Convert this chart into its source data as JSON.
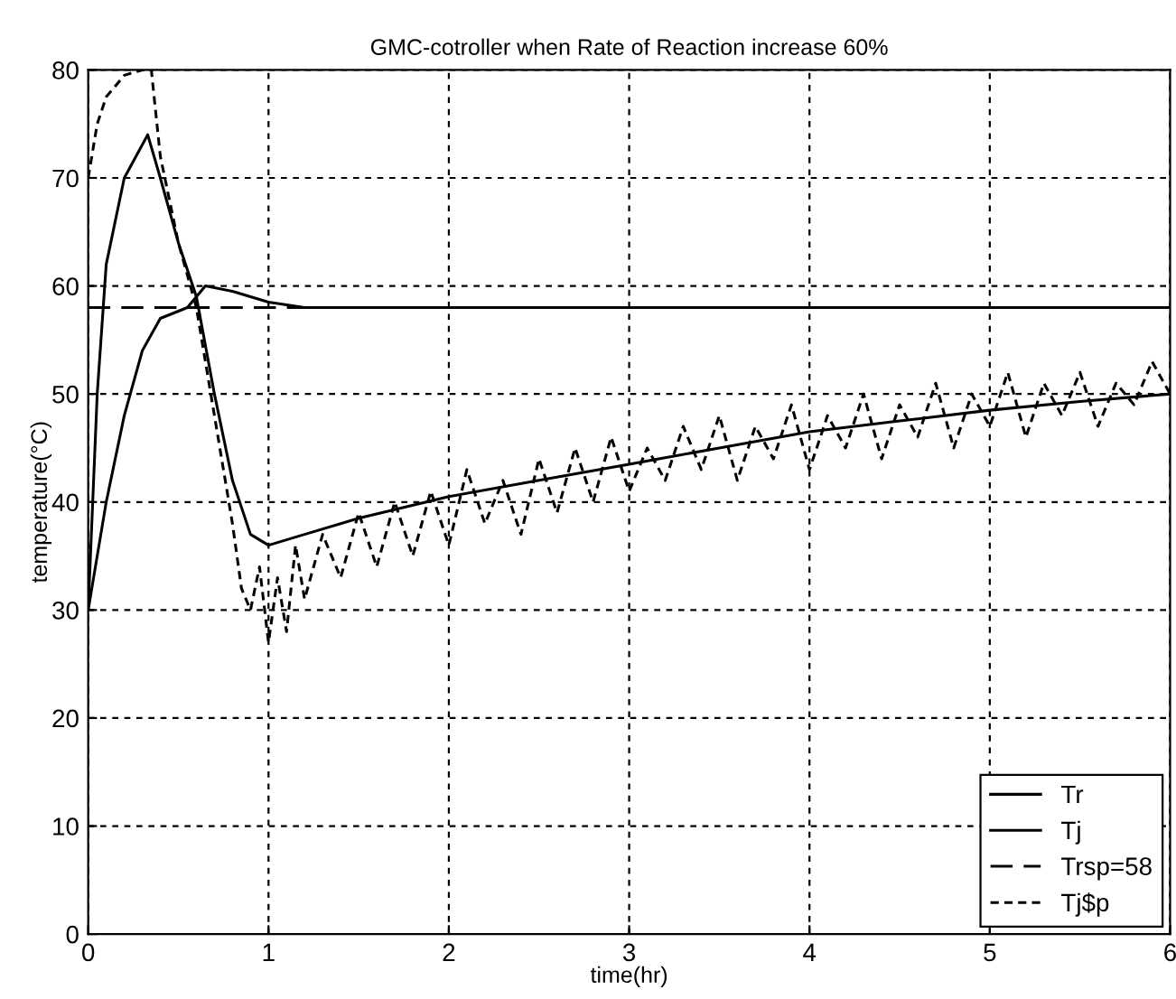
{
  "chart_data": {
    "type": "line",
    "title": "GMC-cotroller when Rate of Reaction increase 60%",
    "xlabel": "time(hr)",
    "ylabel": "temperature(°C)",
    "xlim": [
      0,
      6
    ],
    "ylim": [
      0,
      80
    ],
    "xticks": [
      0,
      1,
      2,
      3,
      4,
      5,
      6
    ],
    "yticks": [
      0,
      10,
      20,
      30,
      40,
      50,
      60,
      70,
      80
    ],
    "grid": true,
    "legend": "bottom right",
    "series": [
      {
        "name": "Tr",
        "color": "#000000",
        "line_style": "solid",
        "x": [
          0,
          0.1,
          0.2,
          0.3,
          0.4,
          0.55,
          0.65,
          0.8,
          1.0,
          1.2,
          6
        ],
        "values": [
          30,
          40,
          48,
          54,
          57,
          58,
          60,
          59.5,
          58.5,
          58,
          58
        ]
      },
      {
        "name": "Tj",
        "color": "#000000",
        "line_style": "solid",
        "x": [
          0,
          0.05,
          0.1,
          0.2,
          0.33,
          0.4,
          0.5,
          0.6,
          0.7,
          0.8,
          0.9,
          1.0,
          1.2,
          1.5,
          2,
          2.5,
          3,
          3.5,
          4,
          4.5,
          5,
          5.5,
          6
        ],
        "values": [
          30,
          50,
          62,
          70,
          74,
          70,
          64,
          59,
          50,
          42,
          37,
          36,
          37,
          38.5,
          40.5,
          42,
          43.5,
          45,
          46.5,
          47.5,
          48.5,
          49.3,
          50
        ]
      },
      {
        "name": "Trsp=58",
        "color": "#000000",
        "line_style": "dashed",
        "x": [
          0,
          6
        ],
        "values": [
          58,
          58
        ]
      },
      {
        "name": "Tj$p",
        "color": "#000000",
        "line_style": "dotted",
        "x": [
          0,
          0.05,
          0.1,
          0.2,
          0.3,
          0.35,
          0.4,
          0.5,
          0.6,
          0.7,
          0.8,
          0.85,
          0.9,
          0.95,
          1.0,
          1.05,
          1.1,
          1.15,
          1.2,
          1.3,
          1.4,
          1.5,
          1.6,
          1.7,
          1.8,
          1.9,
          2.0,
          2.1,
          2.2,
          2.3,
          2.4,
          2.5,
          2.6,
          2.7,
          2.8,
          2.9,
          3.0,
          3.1,
          3.2,
          3.3,
          3.4,
          3.5,
          3.6,
          3.7,
          3.8,
          3.9,
          4.0,
          4.1,
          4.2,
          4.3,
          4.4,
          4.5,
          4.6,
          4.7,
          4.8,
          4.9,
          5.0,
          5.1,
          5.2,
          5.3,
          5.4,
          5.5,
          5.6,
          5.7,
          5.8,
          5.9,
          6.0
        ],
        "values": [
          70,
          75,
          77.5,
          79.5,
          80,
          80,
          72,
          64,
          58,
          48,
          38,
          32,
          30,
          34,
          27,
          33,
          28,
          36,
          31,
          37,
          33,
          39,
          34,
          40,
          35,
          41,
          36,
          43,
          38,
          42,
          37,
          44,
          39,
          45,
          40,
          46,
          41,
          45,
          42,
          47,
          43,
          48,
          42,
          47,
          44,
          49,
          43,
          48,
          45,
          50,
          44,
          49,
          46,
          51,
          45,
          50,
          47,
          52,
          46,
          51,
          48,
          52,
          47,
          51,
          49,
          53,
          50
        ]
      }
    ]
  }
}
